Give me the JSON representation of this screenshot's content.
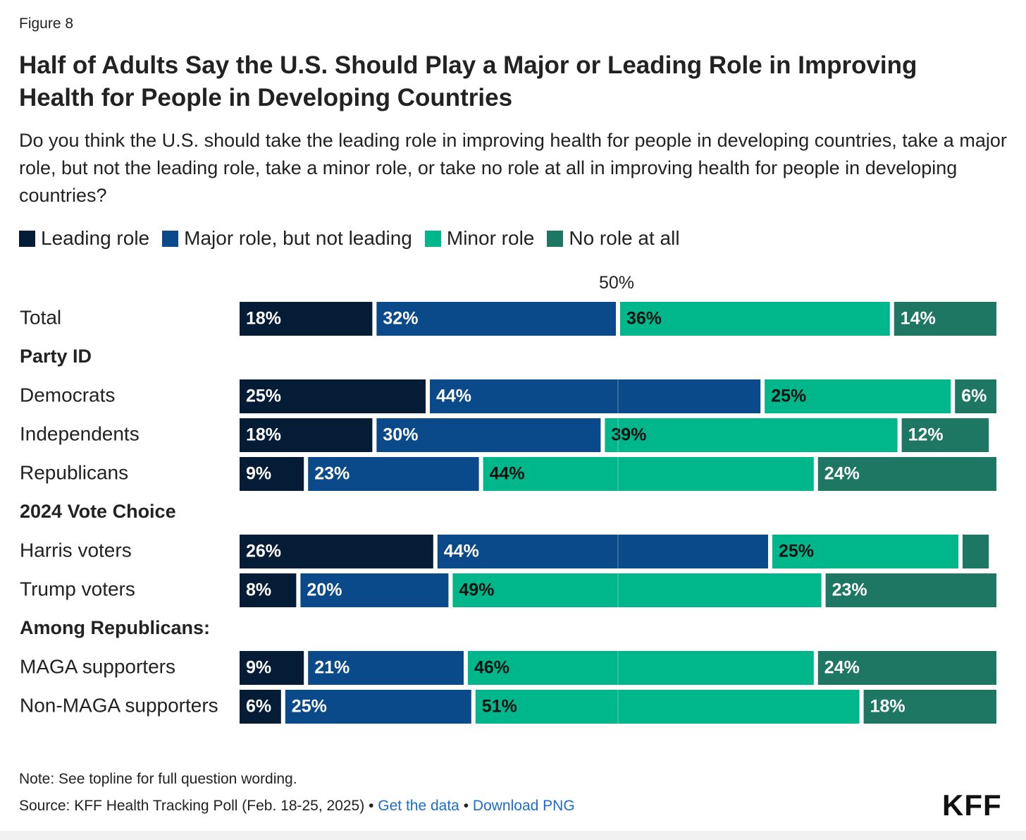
{
  "figure_label": "Figure 8",
  "title": "Half of Adults Say the U.S. Should Play a Major or Leading Role in Improving Health for People in Developing Countries",
  "subtitle": "Do you think the U.S. should take the leading role in improving health for people in developing countries, take a major role, but not the leading role, take a minor role, or take no role at all in improving health for people in developing countries?",
  "marker_label": "50%",
  "note": "Note: See topline for full question wording.",
  "source": {
    "text": "Source: KFF Health Tracking Poll (Feb. 18-25, 2025)",
    "separator": "•",
    "get_data": "Get the data",
    "download": "Download PNG"
  },
  "logo": "KFF",
  "chart_data": {
    "type": "bar",
    "orientation": "horizontal",
    "stacked": true,
    "xlim": [
      0,
      100
    ],
    "reference_line": 50,
    "legend_position": "top-left",
    "grid": false,
    "series": [
      {
        "name": "Leading role",
        "color": "#051c37"
      },
      {
        "name": "Major role, but not leading",
        "color": "#0a4a8a"
      },
      {
        "name": "Minor role",
        "color": "#00b78c"
      },
      {
        "name": "No role at all",
        "color": "#1d7763"
      }
    ],
    "rows": [
      {
        "label": "Total",
        "values": [
          18,
          32,
          36,
          14
        ],
        "labels": [
          "18%",
          "32%",
          "36%",
          "14%"
        ]
      },
      {
        "heading": "Party ID"
      },
      {
        "label": "Democrats",
        "values": [
          25,
          44,
          25,
          6
        ],
        "labels": [
          "25%",
          "44%",
          "25%",
          "6%"
        ]
      },
      {
        "label": "Independents",
        "values": [
          18,
          30,
          39,
          12
        ],
        "labels": [
          "18%",
          "30%",
          "39%",
          "12%"
        ]
      },
      {
        "label": "Republicans",
        "values": [
          9,
          23,
          44,
          24
        ],
        "labels": [
          "9%",
          "23%",
          "44%",
          "24%"
        ]
      },
      {
        "heading": "2024 Vote Choice"
      },
      {
        "label": "Harris voters",
        "values": [
          26,
          44,
          25,
          4
        ],
        "labels": [
          "26%",
          "44%",
          "25%",
          ""
        ]
      },
      {
        "label": "Trump voters",
        "values": [
          8,
          20,
          49,
          23
        ],
        "labels": [
          "8%",
          "20%",
          "49%",
          "23%"
        ]
      },
      {
        "heading": "Among Republicans:"
      },
      {
        "label": "MAGA supporters",
        "values": [
          9,
          21,
          46,
          24
        ],
        "labels": [
          "9%",
          "21%",
          "46%",
          "24%"
        ]
      },
      {
        "label": "Non-MAGA supporters",
        "values": [
          6,
          25,
          51,
          18
        ],
        "labels": [
          "6%",
          "25%",
          "51%",
          "18%"
        ]
      }
    ]
  }
}
